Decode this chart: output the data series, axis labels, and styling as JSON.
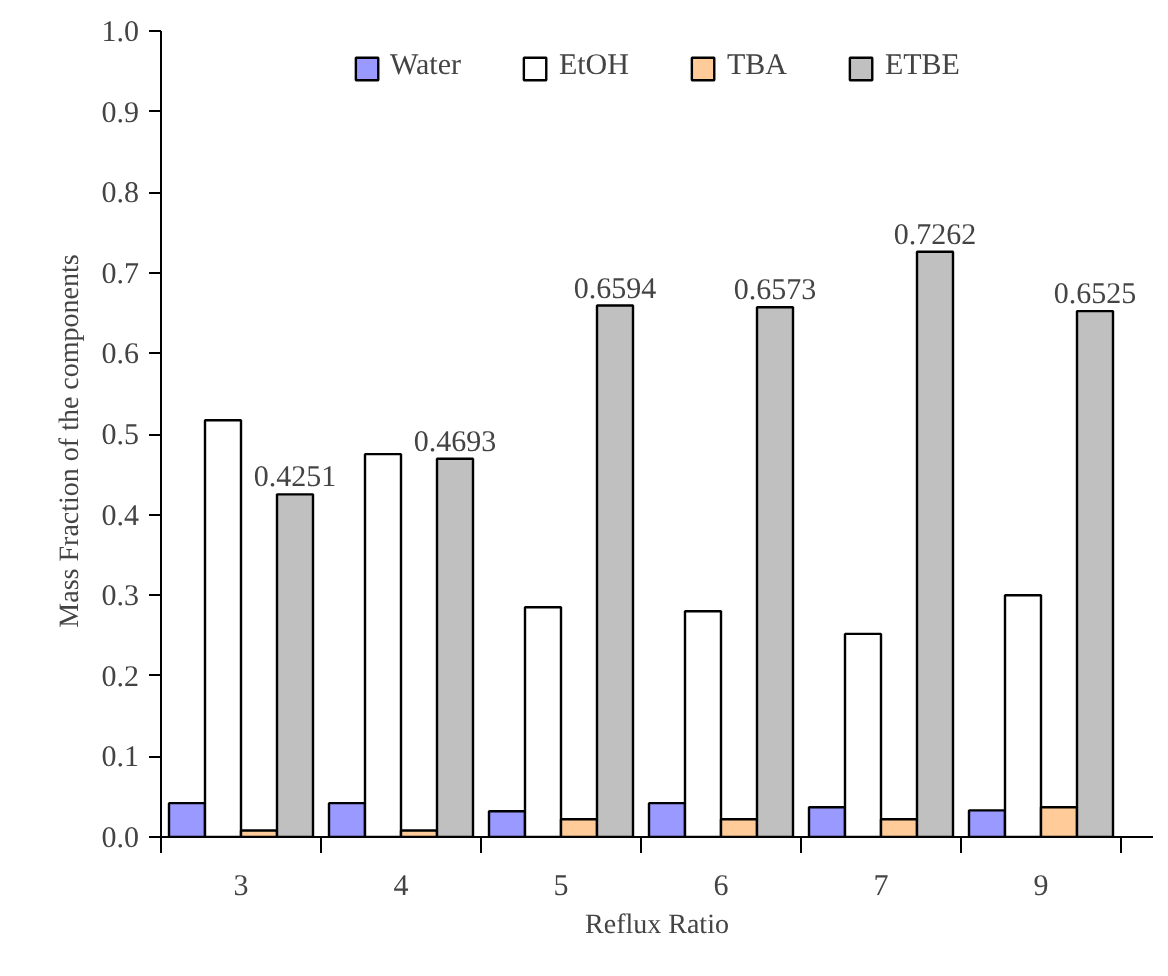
{
  "chart_data": {
    "type": "bar",
    "xlabel": "Reflux Ratio",
    "ylabel": "Mass  Fraction  of the components",
    "categories": [
      "3",
      "4",
      "5",
      "6",
      "7",
      "9"
    ],
    "series": [
      {
        "name": "Water",
        "color": "#9999ff",
        "values": [
          0.042,
          0.042,
          0.032,
          0.042,
          0.037,
          0.033
        ]
      },
      {
        "name": "EtOH",
        "color": "#ffffff",
        "values": [
          0.517,
          0.475,
          0.285,
          0.28,
          0.252,
          0.3
        ]
      },
      {
        "name": "TBA",
        "color": "#ffcc99",
        "values": [
          0.008,
          0.008,
          0.022,
          0.022,
          0.022,
          0.037
        ]
      },
      {
        "name": "ETBE",
        "color": "#c0c0c0",
        "values": [
          0.4251,
          0.4693,
          0.6594,
          0.6573,
          0.7262,
          0.6525
        ],
        "value_labels": [
          "0.4251",
          "0.4693",
          "0.6594",
          "0.6573",
          "0.7262",
          "0.6525"
        ]
      }
    ],
    "ylim": [
      0,
      1.0
    ],
    "yticks": [
      {
        "value": 0,
        "label": "0.0"
      },
      {
        "value": 0.1,
        "label": "0.1"
      },
      {
        "value": 0.2,
        "label": "0.2"
      },
      {
        "value": 0.3,
        "label": "0.3"
      },
      {
        "value": 0.4,
        "label": "0.4"
      },
      {
        "value": 0.5,
        "label": "0.5"
      },
      {
        "value": 0.6,
        "label": "0.6"
      },
      {
        "value": 0.7,
        "label": "0.7"
      },
      {
        "value": 0.8,
        "label": "0.8"
      },
      {
        "value": 0.9,
        "label": "0.9"
      },
      {
        "value": 1.0,
        "label": "1.0"
      }
    ],
    "legend": "top",
    "grid": false
  }
}
